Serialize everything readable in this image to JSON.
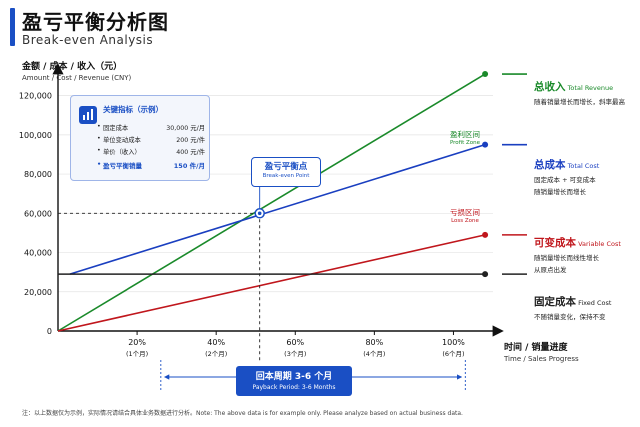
{
  "header": {
    "title": "盈亏平衡分析图",
    "subtitle": "Break-even Analysis"
  },
  "chart_data": {
    "type": "line",
    "title": "盈亏平衡分析图",
    "subtitle": "Break-even Analysis",
    "ylabel": "金额 / 成本 / 收入（元）",
    "ylabel_en": "Amount / Cost / Revenue (CNY)",
    "xlabel": "时间 / 销量进度",
    "xlabel_en": "Time / Sales Progress",
    "xlim": [
      0,
      110
    ],
    "ylim": [
      0,
      130000
    ],
    "xticks": [
      {
        "value": 20,
        "label": "20%",
        "sub": "(1个月)"
      },
      {
        "value": 40,
        "label": "40%",
        "sub": "(2个月)"
      },
      {
        "value": 60,
        "label": "60%",
        "sub": "(3个月)"
      },
      {
        "value": 80,
        "label": "80%",
        "sub": "(4个月)"
      },
      {
        "value": 100,
        "label": "100%",
        "sub": "(6个月)"
      }
    ],
    "yticks": [
      {
        "value": 0,
        "label": "0"
      },
      {
        "value": 20000,
        "label": "20,000"
      },
      {
        "value": 40000,
        "label": "40,000"
      },
      {
        "value": 60000,
        "label": "60,000"
      },
      {
        "value": 80000,
        "label": "80,000"
      },
      {
        "value": 100000,
        "label": "100,000"
      },
      {
        "value": 120000,
        "label": "120,000"
      }
    ],
    "series": [
      {
        "key": "revenue",
        "name": "总收入",
        "name_en": "Total Revenue",
        "desc": "随着销量增长而增长，斜率最高",
        "color": "#1a8a2a",
        "points": [
          [
            0,
            0
          ],
          [
            108,
            131000
          ]
        ]
      },
      {
        "key": "total",
        "name": "总成本",
        "name_en": "Total Cost",
        "desc": [
          "固定成本 + 可变成本",
          "随销量增长而增长"
        ],
        "color": "#1a3fc0",
        "points": [
          [
            3,
            29000
          ],
          [
            108,
            95000
          ]
        ]
      },
      {
        "key": "variable",
        "name": "可变成本",
        "name_en": "Variable Cost",
        "desc": [
          "随销量增长而线性增长",
          "从原点出发"
        ],
        "color": "#c0161c",
        "points": [
          [
            0,
            0
          ],
          [
            108,
            49000
          ]
        ]
      },
      {
        "key": "fixed",
        "name": "固定成本",
        "name_en": "Fixed Cost",
        "desc": [
          "不随销量变化，保持不变"
        ],
        "color": "#222222",
        "points": [
          [
            0,
            29000
          ],
          [
            108,
            29000
          ]
        ]
      }
    ],
    "breakeven": {
      "x": 51,
      "y": 60000,
      "label": "盈亏平衡点",
      "label_en": "Break-even Point"
    },
    "zones": {
      "profit": {
        "label": "盈利区间",
        "label_en": "Profit Zone"
      },
      "loss": {
        "label": "亏损区间",
        "label_en": "Loss Zone"
      }
    },
    "payback": {
      "label": "回本周期 3-6 个月",
      "label_en": "Payback Period: 3-6 Months",
      "x_start": 26,
      "x_end": 103
    }
  },
  "metrics": {
    "title": "关键指标（示例）",
    "rows": [
      {
        "label": "固定成本",
        "value": "30,000 元/月"
      },
      {
        "label": "单位变动成本",
        "value": "200 元/件"
      },
      {
        "label": "单价（收入）",
        "value": "400 元/件"
      }
    ],
    "highlight": {
      "label": "盈亏平衡销量",
      "value": "150 件/月"
    }
  },
  "note": "注：以上数据仅为示例，实际情况请结合具体业务数据进行分析。Note: The above data is for example only. Please analyze based on actual business data.",
  "colors": {
    "accent": "#1a4fc4",
    "revenue": "#1a8a2a",
    "total_cost": "#1a3fc0",
    "variable_cost": "#c0161c",
    "fixed_cost": "#222222"
  }
}
